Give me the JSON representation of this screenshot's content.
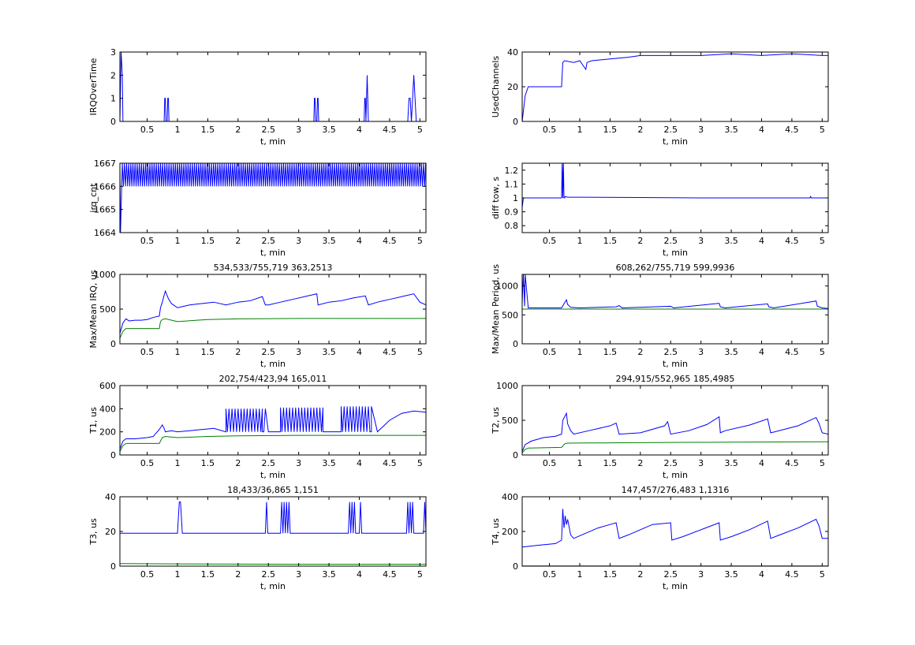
{
  "figure": {
    "background": "#ffffff",
    "series_colors": [
      "#0000ff",
      "#008000"
    ]
  },
  "chart_data": [
    {
      "type": "line",
      "title": "",
      "xlabel": "t, min",
      "ylabel": "IRQOverTime",
      "xlim": [
        0.05,
        5.1
      ],
      "ylim": [
        0,
        3
      ],
      "xticks": [
        "0.5",
        "1",
        "1.5",
        "2",
        "2.5",
        "3",
        "3.5",
        "4",
        "4.5",
        "5"
      ],
      "yticks": [
        "0",
        "1",
        "2",
        "3"
      ],
      "series": [
        {
          "color": "#0000ff",
          "x": [
            0.05,
            0.07,
            0.09,
            0.1,
            0.78,
            0.79,
            0.8,
            0.81,
            0.83,
            0.84,
            0.85,
            0.86,
            3.25,
            3.26,
            3.27,
            3.28,
            3.3,
            3.31,
            3.32,
            3.33,
            4.08,
            4.09,
            4.1,
            4.11,
            4.12,
            4.13,
            4.14,
            4.15,
            4.8,
            4.82,
            4.84,
            4.86,
            4.88,
            4.9,
            4.92,
            4.94,
            5.1
          ],
          "values": [
            0,
            3,
            2,
            0,
            0,
            1,
            1,
            0,
            0,
            1,
            1,
            0,
            0,
            1,
            1,
            0,
            0,
            1,
            1,
            0,
            0,
            1,
            1,
            0,
            1,
            2,
            1,
            0,
            0,
            1,
            1,
            0,
            1,
            2,
            1,
            0,
            0
          ]
        }
      ]
    },
    {
      "type": "line",
      "title": "",
      "xlabel": "t, min",
      "ylabel": "UsedChannels",
      "xlim": [
        0.05,
        5.1
      ],
      "ylim": [
        0,
        40
      ],
      "xticks": [
        "0.5",
        "1",
        "1.5",
        "2",
        "2.5",
        "3",
        "3.5",
        "4",
        "4.5",
        "5"
      ],
      "yticks": [
        "0",
        "20",
        "40"
      ],
      "series": [
        {
          "color": "#0000ff",
          "x": [
            0.05,
            0.1,
            0.15,
            0.2,
            0.7,
            0.72,
            0.75,
            0.9,
            1.0,
            1.1,
            1.12,
            1.2,
            1.5,
            1.8,
            2.0,
            2.5,
            3.0,
            3.5,
            4.0,
            4.5,
            5.0,
            5.1
          ],
          "values": [
            0,
            15,
            20,
            20,
            20,
            34,
            35,
            34,
            35,
            30,
            34,
            35,
            36,
            37,
            38,
            38,
            38,
            39,
            38,
            39,
            38,
            38
          ]
        }
      ]
    },
    {
      "type": "line",
      "title": "",
      "xlabel": "t, min",
      "ylabel": "irq_cnt",
      "xlim": [
        0.05,
        5.1
      ],
      "ylim": [
        1664,
        1667
      ],
      "xticks": [
        "0.5",
        "1",
        "1.5",
        "2",
        "2.5",
        "3",
        "3.5",
        "4",
        "4.5",
        "5"
      ],
      "yticks": [
        "1664",
        "1665",
        "1666",
        "1667"
      ],
      "series": [
        {
          "color": "#0000ff",
          "x": [
            0.05,
            0.06,
            0.07,
            0.08,
            0.09
          ],
          "values": [
            1667,
            1664,
            1665,
            1666,
            1667
          ],
          "oscillation": {
            "from": 0.09,
            "to": 5.1,
            "step": 0.035,
            "high": 1667,
            "low": 1666
          }
        }
      ]
    },
    {
      "type": "line",
      "title": "",
      "xlabel": "t, min",
      "ylabel": "diff tow, s",
      "xlim": [
        0.05,
        5.1
      ],
      "ylim": [
        0.75,
        1.25
      ],
      "xticks": [
        "0.5",
        "1",
        "1.5",
        "2",
        "2.5",
        "3",
        "3.5",
        "4",
        "4.5",
        "5"
      ],
      "yticks": [
        "0.8",
        "0.9",
        "1",
        "1.1",
        "1.2"
      ],
      "series": [
        {
          "color": "#0000ff",
          "x": [
            0.05,
            0.07,
            0.1,
            0.7,
            0.71,
            0.72,
            0.73,
            0.74,
            0.75,
            0.76,
            0.8,
            1.0,
            2.0,
            3.0,
            4.0,
            4.8,
            4.81,
            4.82,
            5.1
          ],
          "values": [
            0.93,
            1.0,
            1.0,
            1.0,
            1.25,
            1.0,
            1.25,
            1.0,
            1.0,
            1.01,
            1.005,
            1.005,
            1.003,
            1.0,
            1.0,
            1.0,
            1.01,
            1.0,
            1.0
          ]
        }
      ]
    },
    {
      "type": "line",
      "title": "534,533/755,719  363,2513",
      "xlabel": "t, min",
      "ylabel": "Max/Mean IRQ, us",
      "xlim": [
        0.05,
        5.1
      ],
      "ylim": [
        0,
        1000
      ],
      "xticks": [
        "0.5",
        "1",
        "1.5",
        "2",
        "2.5",
        "3",
        "3.5",
        "4",
        "4.5",
        "5"
      ],
      "yticks": [
        "0",
        "500",
        "1000"
      ],
      "series": [
        {
          "color": "#0000ff",
          "x": [
            0.05,
            0.1,
            0.15,
            0.2,
            0.3,
            0.4,
            0.5,
            0.6,
            0.7,
            0.72,
            0.75,
            0.78,
            0.8,
            0.85,
            0.9,
            1.0,
            1.2,
            1.4,
            1.6,
            1.8,
            2.0,
            2.2,
            2.4,
            2.45,
            2.5,
            2.7,
            2.9,
            3.1,
            3.3,
            3.32,
            3.5,
            3.7,
            3.9,
            4.1,
            4.15,
            4.3,
            4.5,
            4.7,
            4.9,
            5.0,
            5.1
          ],
          "values": [
            150,
            300,
            360,
            330,
            340,
            340,
            350,
            380,
            400,
            520,
            600,
            700,
            760,
            650,
            580,
            520,
            560,
            580,
            600,
            560,
            600,
            620,
            680,
            560,
            560,
            600,
            640,
            680,
            720,
            560,
            600,
            620,
            660,
            690,
            560,
            600,
            640,
            680,
            720,
            600,
            560
          ]
        },
        {
          "color": "#008000",
          "x": [
            0.05,
            0.1,
            0.15,
            0.2,
            0.7,
            0.72,
            0.75,
            0.8,
            1.0,
            1.5,
            2.0,
            3.0,
            4.0,
            5.1
          ],
          "values": [
            80,
            180,
            220,
            220,
            220,
            320,
            350,
            360,
            320,
            350,
            360,
            365,
            365,
            365
          ]
        }
      ]
    },
    {
      "type": "line",
      "title": "608,262/755,719  599,9936",
      "xlabel": "t, min",
      "ylabel": "Max/Mean Period, us",
      "xlim": [
        0.05,
        5.1
      ],
      "ylim": [
        0,
        1200
      ],
      "xticks": [
        "0.5",
        "1",
        "1.5",
        "2",
        "2.5",
        "3",
        "3.5",
        "4",
        "4.5",
        "5"
      ],
      "yticks": [
        "0",
        "500",
        "1000"
      ],
      "series": [
        {
          "color": "#0000ff",
          "x": [
            0.05,
            0.07,
            0.09,
            0.1,
            0.15,
            0.7,
            0.78,
            0.8,
            0.85,
            1.0,
            1.6,
            1.65,
            1.7,
            2.5,
            2.55,
            3.3,
            3.32,
            3.4,
            4.1,
            4.12,
            4.2,
            4.9,
            4.92,
            5.0,
            5.1
          ],
          "values": [
            700,
            1200,
            650,
            1200,
            620,
            620,
            760,
            680,
            630,
            620,
            640,
            660,
            620,
            650,
            620,
            700,
            640,
            620,
            690,
            640,
            620,
            740,
            650,
            620,
            610
          ]
        },
        {
          "color": "#008000",
          "x": [
            0.05,
            0.1,
            0.2,
            5.1
          ],
          "values": [
            600,
            600,
            600,
            600
          ]
        }
      ]
    },
    {
      "type": "line",
      "title": "202,754/423,94  165,011",
      "xlabel": "t, min",
      "ylabel": "T1, us",
      "xlim": [
        0.05,
        5.1
      ],
      "ylim": [
        0,
        600
      ],
      "xticks": [
        "0.5",
        "1",
        "1.5",
        "2",
        "2.5",
        "3",
        "3.5",
        "4",
        "4.5",
        "5"
      ],
      "yticks": [
        "0",
        "200",
        "400",
        "600"
      ],
      "series": [
        {
          "color": "#0000ff",
          "x": [
            0.05,
            0.1,
            0.15,
            0.3,
            0.5,
            0.6,
            0.7,
            0.75,
            0.78,
            0.8,
            0.9,
            1.0,
            1.2,
            1.4,
            1.6,
            1.8,
            2.4,
            2.5,
            2.7,
            3.4,
            3.5,
            3.7,
            4.2,
            4.3,
            4.5,
            4.7,
            4.9,
            5.1
          ],
          "values": [
            50,
            120,
            140,
            140,
            150,
            160,
            220,
            260,
            230,
            200,
            210,
            200,
            210,
            220,
            230,
            200,
            200,
            200,
            200,
            200,
            200,
            200,
            200,
            200,
            300,
            360,
            380,
            370
          ],
          "oscillation_ranges": [
            {
              "from": 1.8,
              "to": 2.45,
              "step": 0.05,
              "high": 400,
              "low": 200
            },
            {
              "from": 2.7,
              "to": 3.4,
              "step": 0.05,
              "high": 410,
              "low": 200
            },
            {
              "from": 3.7,
              "to": 4.2,
              "step": 0.05,
              "high": 420,
              "low": 200
            }
          ]
        },
        {
          "color": "#008000",
          "x": [
            0.05,
            0.1,
            0.15,
            0.7,
            0.75,
            0.8,
            1.0,
            1.5,
            2.0,
            3.0,
            4.0,
            5.1
          ],
          "values": [
            30,
            80,
            100,
            100,
            150,
            160,
            150,
            160,
            165,
            170,
            170,
            170
          ]
        }
      ]
    },
    {
      "type": "line",
      "title": "294,915/552,965  185,4985",
      "xlabel": "t, min",
      "ylabel": "T2, us",
      "xlim": [
        0.05,
        5.1
      ],
      "ylim": [
        0,
        1000
      ],
      "xticks": [
        "0.5",
        "1",
        "1.5",
        "2",
        "2.5",
        "3",
        "3.5",
        "4",
        "4.5",
        "5"
      ],
      "yticks": [
        "0",
        "500",
        "1000"
      ],
      "series": [
        {
          "color": "#0000ff",
          "x": [
            0.05,
            0.1,
            0.2,
            0.4,
            0.6,
            0.7,
            0.72,
            0.75,
            0.78,
            0.8,
            0.85,
            0.9,
            1.2,
            1.5,
            1.6,
            1.65,
            2.0,
            2.4,
            2.45,
            2.5,
            2.8,
            3.1,
            3.3,
            3.32,
            3.4,
            3.8,
            4.1,
            4.15,
            4.2,
            4.6,
            4.9,
            4.95,
            5.0,
            5.1
          ],
          "values": [
            50,
            150,
            200,
            250,
            270,
            300,
            500,
            550,
            600,
            450,
            350,
            300,
            360,
            420,
            460,
            300,
            320,
            420,
            480,
            300,
            350,
            440,
            550,
            320,
            350,
            430,
            520,
            320,
            330,
            420,
            540,
            450,
            320,
            300
          ]
        },
        {
          "color": "#008000",
          "x": [
            0.05,
            0.1,
            0.15,
            0.7,
            0.75,
            0.8,
            1.5,
            2.5,
            3.5,
            5.1
          ],
          "values": [
            30,
            80,
            100,
            110,
            160,
            170,
            175,
            180,
            185,
            190
          ]
        }
      ]
    },
    {
      "type": "line",
      "title": "18,433/36,865  1,151",
      "xlabel": "t, min",
      "ylabel": "T3, us",
      "xlim": [
        0.05,
        5.1
      ],
      "ylim": [
        0,
        40
      ],
      "xticks": [
        "0.5",
        "1",
        "1.5",
        "2",
        "2.5",
        "3",
        "3.5",
        "4",
        "4.5",
        "5"
      ],
      "yticks": [
        "0",
        "20",
        "40"
      ],
      "series": [
        {
          "color": "#0000ff",
          "x": [
            0.05,
            1.0,
            1.03,
            1.05,
            1.08,
            2.45,
            2.47,
            2.49,
            2.51,
            2.7,
            2.72,
            2.74,
            2.76,
            2.78,
            2.8,
            2.82,
            2.84,
            2.86,
            2.88,
            3.82,
            3.84,
            3.86,
            3.88,
            3.9,
            3.92,
            3.94,
            3.96,
            4.0,
            4.02,
            4.04,
            4.06,
            4.78,
            4.8,
            4.82,
            4.84,
            4.86,
            4.88,
            4.9,
            4.92,
            5.06,
            5.08,
            5.1
          ],
          "values": [
            19,
            19,
            37,
            37,
            19,
            19,
            37,
            19,
            19,
            19,
            37,
            19,
            37,
            19,
            37,
            19,
            37,
            19,
            19,
            19,
            37,
            19,
            37,
            19,
            37,
            19,
            19,
            19,
            37,
            19,
            19,
            19,
            37,
            19,
            37,
            19,
            37,
            19,
            19,
            19,
            37,
            19
          ]
        },
        {
          "color": "#008000",
          "x": [
            0.05,
            1.0,
            2.0,
            3.0,
            4.0,
            5.1
          ],
          "values": [
            1.5,
            1.3,
            1.2,
            1.1,
            1.1,
            1.1
          ]
        }
      ]
    },
    {
      "type": "line",
      "title": "147,457/276,483  1,1316",
      "xlabel": "t, min",
      "ylabel": "T4, us",
      "xlim": [
        0.05,
        5.1
      ],
      "ylim": [
        0,
        400
      ],
      "xticks": [
        "0.5",
        "1",
        "1.5",
        "2",
        "2.5",
        "3",
        "3.5",
        "4",
        "4.5",
        "5"
      ],
      "yticks": [
        "0",
        "200",
        "400"
      ],
      "series": [
        {
          "color": "#0000ff",
          "x": [
            0.05,
            0.3,
            0.6,
            0.7,
            0.72,
            0.74,
            0.76,
            0.78,
            0.8,
            0.85,
            0.9,
            1.1,
            1.3,
            1.5,
            1.6,
            1.65,
            1.8,
            2.0,
            2.2,
            2.5,
            2.52,
            2.7,
            3.0,
            3.3,
            3.32,
            3.5,
            3.8,
            4.1,
            4.15,
            4.3,
            4.6,
            4.9,
            4.95,
            5.0,
            5.1
          ],
          "values": [
            110,
            120,
            130,
            150,
            330,
            220,
            290,
            240,
            270,
            180,
            160,
            190,
            220,
            240,
            250,
            160,
            180,
            210,
            240,
            250,
            150,
            170,
            210,
            250,
            150,
            170,
            210,
            260,
            160,
            180,
            220,
            270,
            230,
            160,
            160
          ]
        },
        {
          "color": "#008000",
          "x": [
            0.05,
            5.1
          ],
          "values": [
            1,
            1
          ]
        }
      ]
    }
  ]
}
